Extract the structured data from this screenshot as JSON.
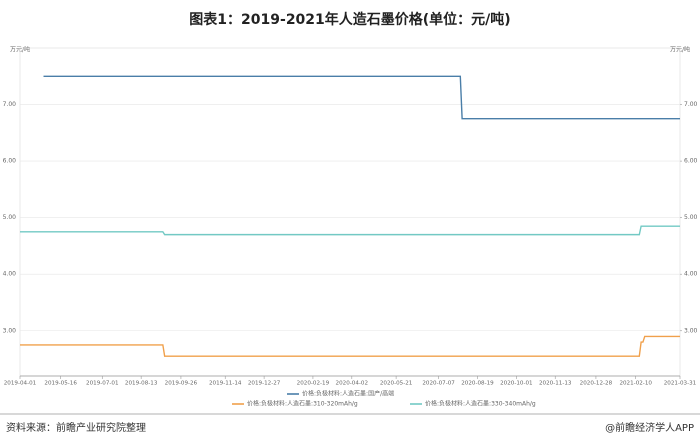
{
  "chart_data": {
    "type": "line",
    "title": "图表1：2019-2021年人造石墨价格(单位：元/吨)",
    "ylabel": "万元/吨",
    "y2label": "万元/吨",
    "xlim": [
      "2019-04-01",
      "2021-03-31"
    ],
    "xticks": [
      "2019-04-01",
      "2019-05-16",
      "2019-07-01",
      "2019-08-13",
      "2019-09-26",
      "2019-11-14",
      "2019-12-27",
      "2020-02-19",
      "2020-04-02",
      "2020-05-21",
      "2020-07-07",
      "2020-08-19",
      "2020-10-01",
      "2020-11-13",
      "2020-12-28",
      "2021-02-10",
      "2021-03-31"
    ],
    "ylim": [
      2.2,
      8.0
    ],
    "yticks": [
      {
        "value": 3,
        "label": "3.00"
      },
      {
        "value": 4,
        "label": "4.00"
      },
      {
        "value": 5,
        "label": "5.00"
      },
      {
        "value": 6,
        "label": "6.00"
      },
      {
        "value": 7,
        "label": "7.00"
      }
    ],
    "y2lim": [
      2.2,
      8.0
    ],
    "y2ticks": [
      {
        "value": 3,
        "label": "3.00"
      },
      {
        "value": 4,
        "label": "4.00"
      },
      {
        "value": 5,
        "label": "5.00"
      },
      {
        "value": 6,
        "label": "6.00"
      },
      {
        "value": 7,
        "label": "7.00"
      }
    ],
    "grid": true,
    "series": [
      {
        "name": "价格:负极材料:人造石墨:国产/高端",
        "color": "#4a7ea8",
        "x": [
          "2019-04-27",
          "2020-07-31",
          "2020-08-02",
          "2021-03-31"
        ],
        "values": [
          7.5,
          7.5,
          6.75,
          6.75
        ]
      },
      {
        "name": "价格:负极材料:人造石墨:310-320mAh/g",
        "color": "#f0a04b",
        "x": [
          "2019-04-01",
          "2019-09-06",
          "2019-09-08",
          "2021-02-14",
          "2021-02-16",
          "2021-02-18",
          "2021-02-20",
          "2021-03-31"
        ],
        "values": [
          2.75,
          2.75,
          2.55,
          2.55,
          2.8,
          2.8,
          2.9,
          2.9
        ]
      },
      {
        "name": "价格:负极材料:人造石墨:330-340mAh/g",
        "color": "#72c9c4",
        "x": [
          "2019-04-01",
          "2019-09-06",
          "2019-09-08",
          "2021-02-14",
          "2021-02-16",
          "2021-03-31"
        ],
        "values": [
          4.75,
          4.75,
          4.7,
          4.7,
          4.85,
          4.85
        ]
      }
    ],
    "source": "资料来源：前瞻产业研究院整理",
    "credit": "@前瞻经济学人APP"
  }
}
